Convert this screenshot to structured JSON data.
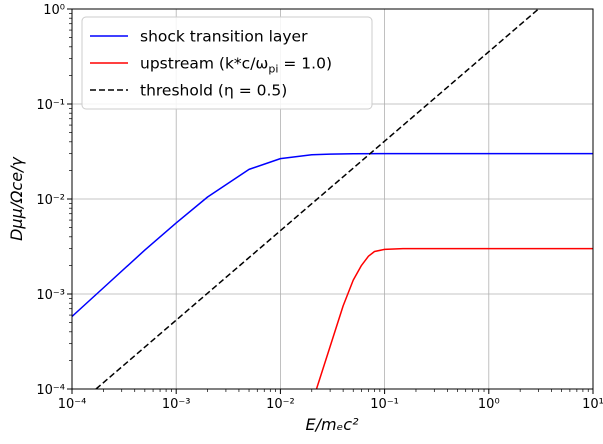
{
  "chart_data": {
    "type": "line",
    "xscale": "log",
    "yscale": "log",
    "xlim": [
      0.0001,
      10
    ],
    "ylim": [
      0.0001,
      1
    ],
    "grid": true,
    "legend_position": "top-left",
    "xlabel": "E/mₑc²",
    "ylabel": "Dμμ/Ωce/γ",
    "x_ticks": [
      {
        "value": 0.0001,
        "label": "10⁻⁴"
      },
      {
        "value": 0.001,
        "label": "10⁻³"
      },
      {
        "value": 0.01,
        "label": "10⁻²"
      },
      {
        "value": 0.1,
        "label": "10⁻¹"
      },
      {
        "value": 1,
        "label": "10⁰"
      },
      {
        "value": 10,
        "label": "10¹"
      }
    ],
    "y_ticks": [
      {
        "value": 0.0001,
        "label": "10⁻⁴"
      },
      {
        "value": 0.001,
        "label": "10⁻³"
      },
      {
        "value": 0.01,
        "label": "10⁻²"
      },
      {
        "value": 0.1,
        "label": "10⁻¹"
      },
      {
        "value": 1,
        "label": "10⁰"
      }
    ],
    "series": [
      {
        "name": "shock transition layer",
        "color": "#0000ff",
        "dash": "solid",
        "x": [
          0.0001,
          0.0002,
          0.0005,
          0.001,
          0.002,
          0.005,
          0.01,
          0.02,
          0.03,
          0.05,
          0.1,
          0.2,
          0.5,
          1,
          2,
          5,
          10
        ],
        "y": [
          0.00058,
          0.00116,
          0.0029,
          0.0056,
          0.0105,
          0.0205,
          0.0266,
          0.0292,
          0.0297,
          0.0299,
          0.03,
          0.03,
          0.03,
          0.03,
          0.03,
          0.03,
          0.03
        ]
      },
      {
        "name": "upstream (k*c/ωpi = 1.0)",
        "color": "#ff0000",
        "dash": "solid",
        "x": [
          0.0222,
          0.03,
          0.04,
          0.05,
          0.06,
          0.07,
          0.08,
          0.1,
          0.15,
          0.2,
          0.5,
          1,
          2,
          5,
          10
        ],
        "y": [
          0.0001,
          0.00028,
          0.00075,
          0.0014,
          0.002,
          0.0025,
          0.0028,
          0.00295,
          0.003,
          0.003,
          0.003,
          0.003,
          0.003,
          0.003,
          0.003
        ]
      },
      {
        "name": "threshold (η = 0.5)",
        "color": "#000000",
        "dash": "dashed",
        "x": [
          0.00017,
          3.0
        ],
        "y": [
          0.0001,
          1
        ]
      }
    ],
    "legend": [
      {
        "main": "shock transition layer",
        "sub": ""
      },
      {
        "main": "upstream (k*c/ω",
        "sub": "pi",
        "tail": " = 1.0)"
      },
      {
        "main": "threshold (η = 0.5)",
        "sub": ""
      }
    ]
  }
}
